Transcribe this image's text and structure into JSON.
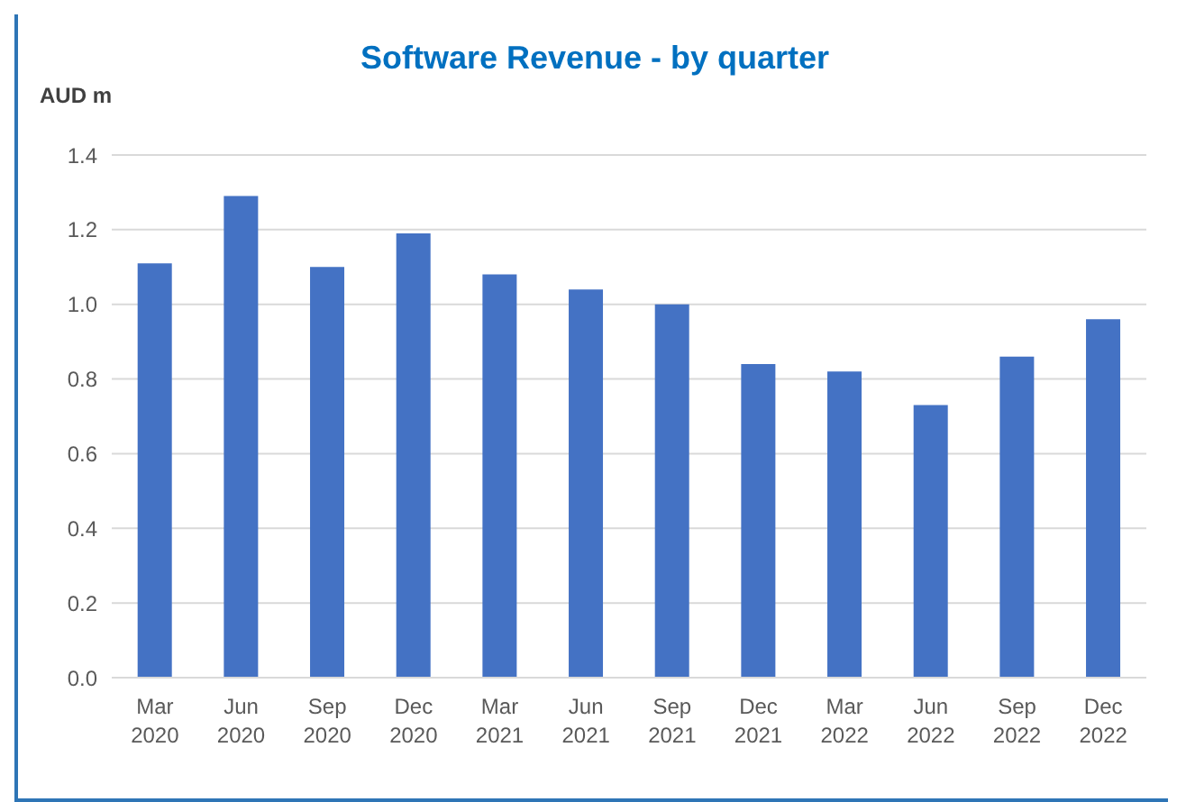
{
  "chart_data": {
    "type": "bar",
    "title": "Software Revenue - by quarter",
    "ylabel": "AUD m",
    "categories": [
      "Mar\n2020",
      "Jun\n2020",
      "Sep\n2020",
      "Dec\n2020",
      "Mar\n2021",
      "Jun\n2021",
      "Sep\n2021",
      "Dec\n2021",
      "Mar\n2022",
      "Jun\n2022",
      "Sep\n2022",
      "Dec\n2022"
    ],
    "values": [
      1.11,
      1.29,
      1.1,
      1.19,
      1.08,
      1.04,
      1.0,
      0.84,
      0.82,
      0.73,
      0.86,
      0.96
    ],
    "color": "#4472c4",
    "ylim": [
      0,
      1.4
    ],
    "yticks": [
      {
        "value": 0,
        "label": "0.0"
      },
      {
        "value": 0.2,
        "label": "0.2"
      },
      {
        "value": 0.4,
        "label": "0.4"
      },
      {
        "value": 0.6,
        "label": "0.6"
      },
      {
        "value": 0.8,
        "label": "0.8"
      },
      {
        "value": 1,
        "label": "1.0"
      },
      {
        "value": 1.2,
        "label": "1.2"
      },
      {
        "value": 1.4,
        "label": "1.4"
      }
    ],
    "grid": "y"
  }
}
